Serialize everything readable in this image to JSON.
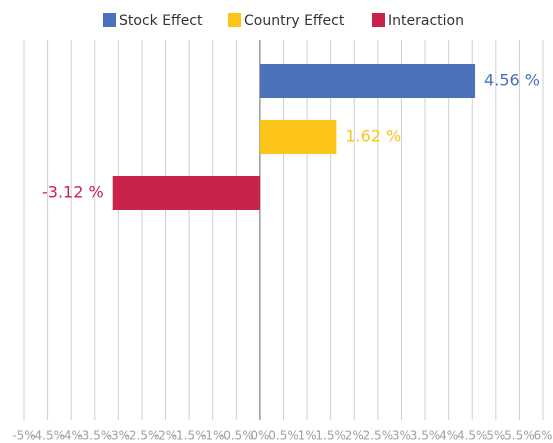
{
  "chart_data": {
    "type": "hbar",
    "series": [
      {
        "name": "Stock Effect",
        "color": "#4a72b8",
        "values": [
          4.56
        ],
        "value_labels": [
          "4.56 %"
        ]
      },
      {
        "name": "Country Effect",
        "color": "#fcc418",
        "values": [
          1.62
        ],
        "value_labels": [
          "1.62 %"
        ]
      },
      {
        "name": "Interaction",
        "color": "#c8234a",
        "values": [
          -3.12
        ],
        "value_labels": [
          "-3.12 %"
        ]
      }
    ],
    "xlim": [
      -5,
      6
    ],
    "xticks": [
      {
        "value": -5,
        "label": "-5%"
      },
      {
        "value": -4.5,
        "label": "-4.5%"
      },
      {
        "value": -4,
        "label": "-4%"
      },
      {
        "value": -3.5,
        "label": "-3.5%"
      },
      {
        "value": -3,
        "label": "-3%"
      },
      {
        "value": -2.5,
        "label": "-2.5%"
      },
      {
        "value": -2,
        "label": "-2%"
      },
      {
        "value": -1.5,
        "label": "-1.5%"
      },
      {
        "value": -1,
        "label": "-1%"
      },
      {
        "value": -0.5,
        "label": "-0.5%"
      },
      {
        "value": 0,
        "label": "0%"
      },
      {
        "value": 0.5,
        "label": "0.5%"
      },
      {
        "value": 1,
        "label": "1%"
      },
      {
        "value": 1.5,
        "label": "1.5%"
      },
      {
        "value": 2,
        "label": "2%"
      },
      {
        "value": 2.5,
        "label": "2.5%"
      },
      {
        "value": 3,
        "label": "3%"
      },
      {
        "value": 3.5,
        "label": "3.5%"
      },
      {
        "value": 4,
        "label": "4%"
      },
      {
        "value": 4.5,
        "label": "4.5%"
      },
      {
        "value": 5,
        "label": "5%"
      },
      {
        "value": 5.5,
        "label": "5.5%"
      },
      {
        "value": 6,
        "label": "6%"
      }
    ],
    "grid": true,
    "legend": "top"
  }
}
